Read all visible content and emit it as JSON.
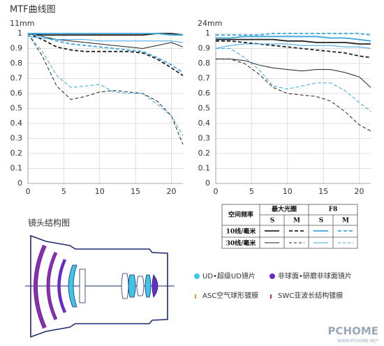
{
  "title": "MTF曲线图",
  "chart_data": [
    {
      "type": "line",
      "subtitle": "11mm",
      "x": [
        0,
        2,
        4,
        6,
        8,
        10,
        12,
        14,
        16,
        18,
        20,
        21.6
      ],
      "xlim": [
        0,
        21.6
      ],
      "xticks": [
        0,
        5,
        10,
        15,
        20
      ],
      "ylim": [
        0,
        1
      ],
      "yticks": [
        0,
        0.1,
        0.2,
        0.3,
        0.4,
        0.5,
        0.6,
        0.7,
        0.8,
        0.9,
        1
      ],
      "grid": true,
      "series": [
        {
          "color": "#222222",
          "width": 1.8,
          "dash": "solid",
          "values": [
            1,
            0.99,
            0.99,
            0.99,
            0.99,
            0.99,
            0.99,
            0.99,
            0.99,
            1,
            1,
            0.99
          ]
        },
        {
          "color": "#222222",
          "width": 1.8,
          "dash": "dashed",
          "values": [
            1,
            0.96,
            0.91,
            0.89,
            0.88,
            0.88,
            0.88,
            0.88,
            0.87,
            0.83,
            0.77,
            0.72
          ]
        },
        {
          "color": "#222222",
          "width": 1,
          "dash": "solid",
          "values": [
            1,
            0.98,
            0.96,
            0.95,
            0.94,
            0.93,
            0.92,
            0.91,
            0.9,
            0.92,
            0.94,
            0.91
          ]
        },
        {
          "color": "#222222",
          "width": 1,
          "dash": "dashed",
          "values": [
            1,
            0.85,
            0.65,
            0.56,
            0.58,
            0.61,
            0.62,
            0.61,
            0.6,
            0.55,
            0.45,
            0.26
          ]
        },
        {
          "color": "#3aa6dc",
          "width": 1.8,
          "dash": "solid",
          "values": [
            1,
            1,
            1,
            1,
            1,
            1,
            1,
            1,
            1,
            1,
            0.99,
            0.99
          ]
        },
        {
          "color": "#3aa6dc",
          "width": 1.8,
          "dash": "dashed",
          "values": [
            1,
            0.98,
            0.95,
            0.93,
            0.92,
            0.91,
            0.9,
            0.89,
            0.88,
            0.84,
            0.79,
            0.74
          ]
        },
        {
          "color": "#3aa6dc",
          "width": 1,
          "dash": "solid",
          "values": [
            0.98,
            0.97,
            0.96,
            0.96,
            0.96,
            0.95,
            0.95,
            0.95,
            0.95,
            0.95,
            0.95,
            0.94
          ]
        },
        {
          "color": "#3aa6dc",
          "width": 1,
          "dash": "dashed",
          "values": [
            1,
            0.88,
            0.72,
            0.64,
            0.65,
            0.66,
            0.61,
            0.6,
            0.6,
            0.53,
            0.45,
            0.32
          ]
        }
      ]
    },
    {
      "type": "line",
      "subtitle": "24mm",
      "x": [
        0,
        2,
        4,
        6,
        8,
        10,
        12,
        14,
        16,
        18,
        20,
        21.6
      ],
      "xlim": [
        0,
        21.6
      ],
      "xticks": [
        0,
        5,
        10,
        15,
        20
      ],
      "ylim": [
        0,
        1
      ],
      "yticks": [
        0,
        0.1,
        0.2,
        0.3,
        0.4,
        0.5,
        0.6,
        0.7,
        0.8,
        0.9,
        1
      ],
      "grid": true,
      "series": [
        {
          "color": "#222222",
          "width": 1.8,
          "dash": "solid",
          "values": [
            0.96,
            0.96,
            0.96,
            0.96,
            0.96,
            0.95,
            0.95,
            0.94,
            0.94,
            0.94,
            0.93,
            0.93
          ]
        },
        {
          "color": "#222222",
          "width": 1.8,
          "dash": "dashed",
          "values": [
            0.95,
            0.95,
            0.94,
            0.93,
            0.92,
            0.91,
            0.9,
            0.89,
            0.88,
            0.87,
            0.85,
            0.84
          ]
        },
        {
          "color": "#222222",
          "width": 1,
          "dash": "solid",
          "values": [
            0.83,
            0.83,
            0.82,
            0.79,
            0.77,
            0.76,
            0.75,
            0.76,
            0.76,
            0.74,
            0.71,
            0.64
          ]
        },
        {
          "color": "#222222",
          "width": 1,
          "dash": "dashed",
          "values": [
            0.83,
            0.83,
            0.8,
            0.73,
            0.64,
            0.6,
            0.59,
            0.58,
            0.55,
            0.48,
            0.39,
            0.35
          ]
        },
        {
          "color": "#3aa6dc",
          "width": 1.8,
          "dash": "solid",
          "values": [
            0.97,
            0.97,
            0.98,
            0.98,
            0.98,
            0.98,
            0.98,
            0.98,
            0.97,
            0.97,
            0.96,
            0.95
          ]
        },
        {
          "color": "#3aa6dc",
          "width": 1.8,
          "dash": "dashed",
          "values": [
            0.99,
            0.99,
            0.99,
            0.99,
            1,
            1,
            1,
            1,
            1,
            1,
            1,
            0.99
          ]
        },
        {
          "color": "#3aa6dc",
          "width": 1,
          "dash": "solid",
          "values": [
            0.9,
            0.92,
            0.93,
            0.93,
            0.93,
            0.93,
            0.92,
            0.92,
            0.92,
            0.91,
            0.91,
            0.9
          ]
        },
        {
          "color": "#3aa6dc",
          "width": 1,
          "dash": "dashed",
          "values": [
            0.9,
            0.9,
            0.84,
            0.76,
            0.65,
            0.63,
            0.65,
            0.67,
            0.67,
            0.62,
            0.54,
            0.48
          ]
        }
      ]
    }
  ],
  "legend_table": {
    "header": [
      "空间频率",
      "最大光圈",
      "F8"
    ],
    "subheader": [
      "S",
      "M",
      "S",
      "M"
    ],
    "rows": [
      "10线/毫米",
      "30线/毫米"
    ]
  },
  "lens_title": "镜头结构图",
  "lens_legend": [
    "UD•超级UD镜片",
    "非球面•研磨非球面镜片",
    "ASC空气球形镀膜",
    "SWC亚波长结构镀膜"
  ],
  "watermark": [
    "PCHOME",
    "WWW.PCHOME.NET"
  ]
}
